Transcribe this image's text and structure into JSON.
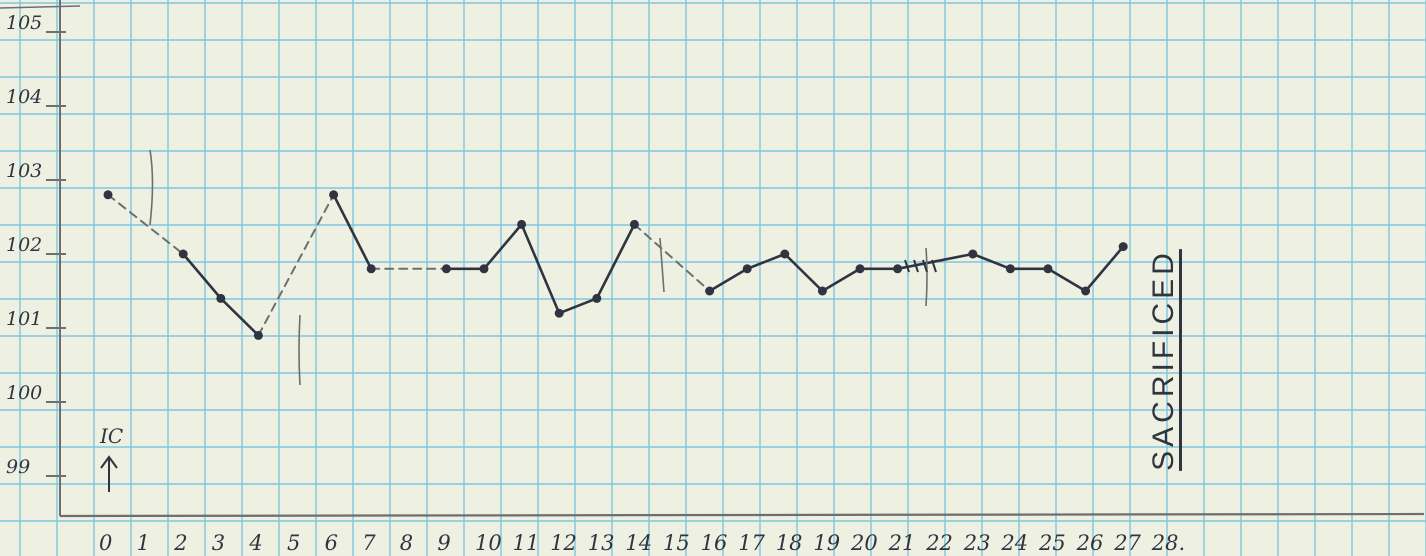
{
  "chart_data": {
    "type": "line",
    "title": "",
    "xlabel": "",
    "ylabel": "",
    "x_ticks": [
      "0",
      "1",
      "2",
      "3",
      "4",
      "5",
      "6",
      "7",
      "8",
      "9",
      "10",
      "11",
      "12",
      "13",
      "14",
      "15",
      "16",
      "17",
      "18",
      "19",
      "20",
      "21",
      "22",
      "23",
      "24",
      "25",
      "26",
      "27",
      "28."
    ],
    "y_ticks": [
      "105",
      "104",
      "103",
      "102",
      "101",
      "100",
      "99"
    ],
    "y_tick_values": [
      105,
      104,
      103,
      102,
      101,
      100,
      99
    ],
    "xlim": [
      0,
      28
    ],
    "ylim": [
      98.2,
      105.2
    ],
    "points": [
      {
        "x": 0,
        "y": 102.8
      },
      {
        "x": 2,
        "y": 102.0
      },
      {
        "x": 3,
        "y": 101.4
      },
      {
        "x": 4,
        "y": 100.9
      },
      {
        "x": 6,
        "y": 102.8
      },
      {
        "x": 7,
        "y": 101.8
      },
      {
        "x": 9,
        "y": 101.8
      },
      {
        "x": 10,
        "y": 101.8
      },
      {
        "x": 11,
        "y": 102.4
      },
      {
        "x": 12,
        "y": 101.2
      },
      {
        "x": 13,
        "y": 101.4
      },
      {
        "x": 14,
        "y": 102.4
      },
      {
        "x": 16,
        "y": 101.5
      },
      {
        "x": 17,
        "y": 101.8
      },
      {
        "x": 18,
        "y": 102.0
      },
      {
        "x": 19,
        "y": 101.5
      },
      {
        "x": 20,
        "y": 101.8
      },
      {
        "x": 21,
        "y": 101.8
      },
      {
        "x": 23,
        "y": 102.0
      },
      {
        "x": 24,
        "y": 101.8
      },
      {
        "x": 25,
        "y": 101.8
      },
      {
        "x": 26,
        "y": 101.5
      },
      {
        "x": 27,
        "y": 102.1
      }
    ],
    "dashed_segments": [
      [
        0,
        1
      ],
      [
        3,
        4
      ],
      [
        5,
        6
      ],
      [
        11,
        12
      ]
    ],
    "grid": true,
    "annotations": {
      "marker_label": "IC",
      "end_label": "SACRIFICED"
    },
    "colors": {
      "paper": "#eef1e2",
      "grid": "#7fc6df",
      "ink": "#2f3440",
      "pencil": "#6e6e6e"
    }
  }
}
